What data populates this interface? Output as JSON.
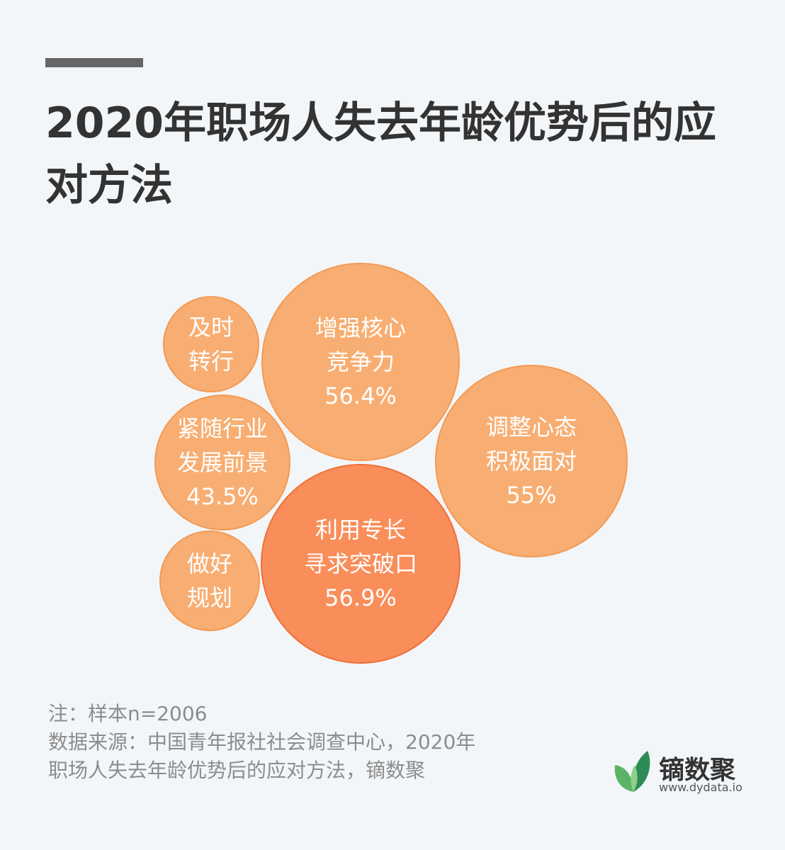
{
  "title": "2020年职场人失去年龄优势后的应对方法",
  "notes": {
    "sample": "注：样本n=2006",
    "source_line1": "数据来源：中国青年报社社会调查中心，2020年",
    "source_line2": "职场人失去年龄优势后的应对方法，镝数聚"
  },
  "logo": {
    "name": "镝数聚",
    "url": "www.dydata.io"
  },
  "colors": {
    "background": "#f3f6f9",
    "bubble_fill": "#f8ae72",
    "bubble_stroke": "#f39a55",
    "highlight_fill": "#f98e5a",
    "highlight_stroke": "#f0703a"
  },
  "chart_data": {
    "type": "bubble",
    "items": [
      {
        "lines": [
          "利用专长",
          "寻求突破口"
        ],
        "value_label": "56.9%",
        "value": 56.9,
        "highlight": true
      },
      {
        "lines": [
          "增强核心",
          "竞争力"
        ],
        "value_label": "56.4%",
        "value": 56.4
      },
      {
        "lines": [
          "调整心态",
          "积极面对"
        ],
        "value_label": "55%",
        "value": 55
      },
      {
        "lines": [
          "紧随行业",
          "发展前景"
        ],
        "value_label": "43.5%",
        "value": 43.5
      },
      {
        "lines": [
          "做好",
          "规划"
        ],
        "value_label": "",
        "value": null
      },
      {
        "lines": [
          "及时",
          "转行"
        ],
        "value_label": "",
        "value": null
      }
    ]
  }
}
